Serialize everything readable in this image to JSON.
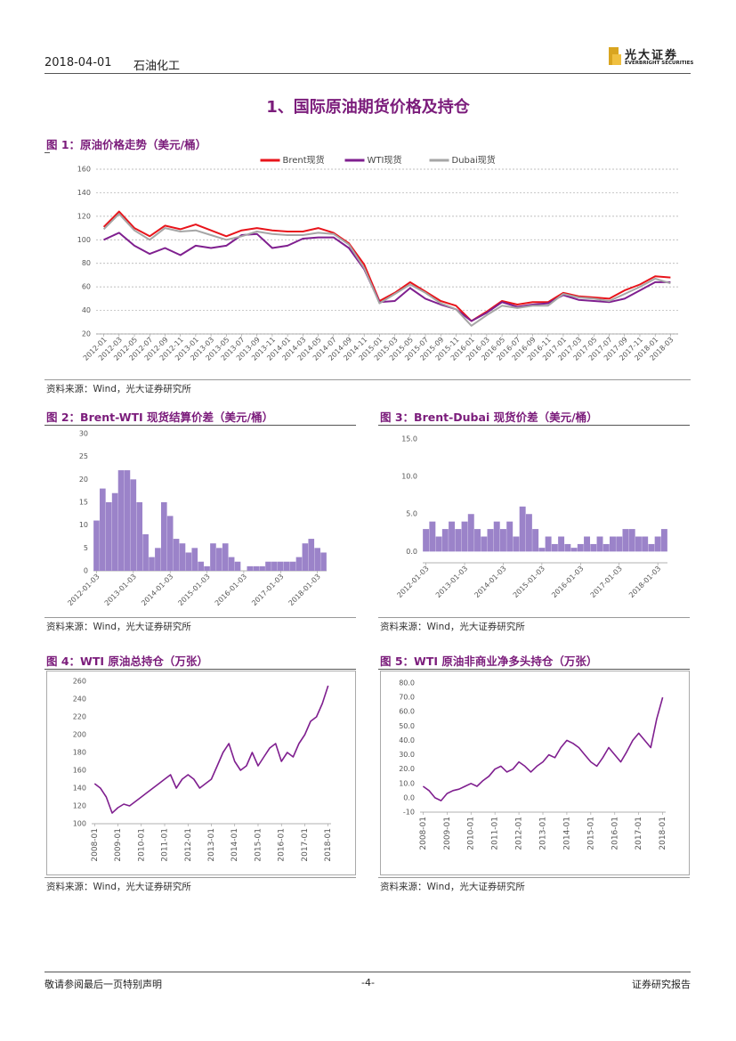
{
  "header": {
    "date": "2018-04-01",
    "category": "石油化工",
    "logo_cn": "光大证券",
    "logo_en": "EVERBRIGHT SECURITIES"
  },
  "section_title": "1、国际原油期货价格及持仓",
  "footer": {
    "left": "敬请参阅最后一页特别声明",
    "center": "-4-",
    "right": "证券研究报告"
  },
  "chart_data": [
    {
      "type": "line",
      "title": "图 1：原油价格走势（美元/桶）",
      "source": "资料来源：Wind，光大证券研究所",
      "categories": [
        "2012-01",
        "2012-03",
        "2012-05",
        "2012-07",
        "2012-09",
        "2012-11",
        "2013-01",
        "2013-03",
        "2013-05",
        "2013-07",
        "2013-09",
        "2013-11",
        "2014-01",
        "2014-03",
        "2014-05",
        "2014-07",
        "2014-09",
        "2014-11",
        "2015-01",
        "2015-03",
        "2015-05",
        "2015-07",
        "2015-09",
        "2015-11",
        "2016-01",
        "2016-03",
        "2016-05",
        "2016-07",
        "2016-09",
        "2016-11",
        "2017-01",
        "2017-03",
        "2017-05",
        "2017-07",
        "2017-09",
        "2017-11",
        "2018-01",
        "2018-03"
      ],
      "series": [
        {
          "name": "Brent现货",
          "color": "#e8141b",
          "values": [
            111,
            124,
            110,
            103,
            112,
            109,
            113,
            108,
            103,
            108,
            110,
            108,
            107,
            107,
            110,
            106,
            97,
            79,
            48,
            55,
            64,
            56,
            48,
            44,
            31,
            39,
            48,
            45,
            47,
            47,
            55,
            52,
            51,
            50,
            57,
            62,
            69,
            68
          ]
        },
        {
          "name": "WTI现货",
          "color": "#7f1f8f",
          "values": [
            100,
            106,
            95,
            88,
            93,
            87,
            95,
            93,
            95,
            104,
            105,
            93,
            95,
            101,
            102,
            102,
            93,
            75,
            47,
            48,
            59,
            50,
            45,
            41,
            31,
            38,
            47,
            43,
            45,
            46,
            53,
            49,
            48,
            47,
            50,
            57,
            64,
            64
          ]
        },
        {
          "name": "Dubai现货",
          "color": "#a6a6a6",
          "values": [
            109,
            122,
            108,
            100,
            110,
            107,
            108,
            104,
            100,
            103,
            107,
            105,
            104,
            104,
            106,
            105,
            96,
            76,
            46,
            54,
            62,
            55,
            46,
            41,
            27,
            36,
            44,
            42,
            44,
            44,
            54,
            51,
            50,
            48,
            54,
            60,
            67,
            63
          ]
        }
      ],
      "ylim": [
        20,
        160
      ],
      "yticks": [
        20,
        40,
        60,
        80,
        100,
        120,
        140,
        160
      ],
      "grid": true,
      "legend": "top"
    },
    {
      "type": "bar",
      "title": "图 2：Brent-WTI 现货结算价差（美元/桶）",
      "source": "资料来源：Wind，光大证券研究所",
      "categories": [
        "2012-01-03",
        null,
        null,
        null,
        null,
        null,
        "2013-01-03",
        null,
        null,
        null,
        null,
        null,
        "2014-01-03",
        null,
        null,
        null,
        null,
        null,
        "2015-01-03",
        null,
        null,
        null,
        null,
        null,
        "2016-01-03",
        null,
        null,
        null,
        null,
        null,
        "2017-01-03",
        null,
        null,
        null,
        null,
        null,
        "2018-01-03",
        null
      ],
      "values": [
        11,
        18,
        15,
        17,
        22,
        22,
        20,
        15,
        8,
        3,
        5,
        15,
        12,
        7,
        6,
        4,
        5,
        2,
        1,
        6,
        5,
        6,
        3,
        2,
        0,
        1,
        1,
        1,
        2,
        2,
        2,
        2,
        2,
        3,
        6,
        7,
        5,
        4
      ],
      "color": "#9b83c9",
      "ylim": [
        0,
        30
      ],
      "yticks": [
        0,
        5,
        10,
        15,
        20,
        25,
        30
      ],
      "grid": false
    },
    {
      "type": "bar",
      "title": "图 3：Brent-Dubai 现货价差（美元/桶）",
      "source": "资料来源：Wind，光大证券研究所",
      "categories": [
        "2012-01-03",
        null,
        null,
        null,
        null,
        null,
        "2013-01-03",
        null,
        null,
        null,
        null,
        null,
        "2014-01-03",
        null,
        null,
        null,
        null,
        null,
        "2015-01-03",
        null,
        null,
        null,
        null,
        null,
        "2016-01-03",
        null,
        null,
        null,
        null,
        null,
        "2017-01-03",
        null,
        null,
        null,
        null,
        null,
        "2018-01-03",
        null
      ],
      "values": [
        3,
        4,
        2,
        3,
        4,
        3,
        4,
        5,
        3,
        2,
        3,
        4,
        3,
        4,
        2,
        6,
        5,
        3,
        0.5,
        2,
        1,
        2,
        1,
        0.5,
        1,
        2,
        1,
        2,
        1,
        2,
        2,
        3,
        3,
        2,
        2,
        1,
        2,
        3
      ],
      "color": "#9b83c9",
      "ylim": [
        -1.5,
        15
      ],
      "yticks": [
        {
          "value": 0,
          "label": "0.0"
        },
        {
          "value": 5,
          "label": "5.0"
        },
        {
          "value": 10,
          "label": "10.0"
        },
        {
          "value": 15,
          "label": "15.0"
        }
      ],
      "grid": false
    },
    {
      "type": "line",
      "title": "图 4：WTI 原油总持仓（万张）",
      "source": "资料来源：Wind，光大证券研究所",
      "categories": [
        "2008-01",
        null,
        null,
        null,
        "2009-01",
        null,
        null,
        null,
        "2010-01",
        null,
        null,
        null,
        "2011-01",
        null,
        null,
        null,
        "2012-01",
        null,
        null,
        null,
        "2013-01",
        null,
        null,
        null,
        "2014-01",
        null,
        null,
        null,
        "2015-01",
        null,
        null,
        null,
        "2016-01",
        null,
        null,
        null,
        "2017-01",
        null,
        null,
        null,
        "2018-01"
      ],
      "series": [
        {
          "color": "#7f1f8f",
          "values": [
            145,
            140,
            130,
            112,
            118,
            122,
            120,
            125,
            130,
            135,
            140,
            145,
            150,
            155,
            140,
            150,
            155,
            150,
            140,
            145,
            150,
            165,
            180,
            190,
            170,
            160,
            165,
            180,
            165,
            175,
            185,
            190,
            170,
            180,
            175,
            190,
            200,
            215,
            220,
            235,
            255
          ]
        }
      ],
      "ylim": [
        100,
        260
      ],
      "yticks": [
        100,
        120,
        140,
        160,
        180,
        200,
        220,
        240,
        260
      ],
      "grid": false
    },
    {
      "type": "line",
      "title": "图 5：WTI 原油非商业净多头持仓（万张）",
      "source": "资料来源：Wind，光大证券研究所",
      "categories": [
        "2008-01",
        null,
        null,
        null,
        "2009-01",
        null,
        null,
        null,
        "2010-01",
        null,
        null,
        null,
        "2011-01",
        null,
        null,
        null,
        "2012-01",
        null,
        null,
        null,
        "2013-01",
        null,
        null,
        null,
        "2014-01",
        null,
        null,
        null,
        "2015-01",
        null,
        null,
        null,
        "2016-01",
        null,
        null,
        null,
        "2017-01",
        null,
        null,
        null,
        "2018-01"
      ],
      "series": [
        {
          "color": "#7f1f8f",
          "values": [
            8,
            5,
            0,
            -2,
            3,
            5,
            6,
            8,
            10,
            8,
            12,
            15,
            20,
            22,
            18,
            20,
            25,
            22,
            18,
            22,
            25,
            30,
            28,
            35,
            40,
            38,
            35,
            30,
            25,
            22,
            28,
            35,
            30,
            25,
            32,
            40,
            45,
            40,
            35,
            55,
            70
          ]
        }
      ],
      "ylim": [
        -10,
        80
      ],
      "yticks": [
        {
          "value": -10,
          "label": "-10"
        },
        {
          "value": 0,
          "label": "0.0"
        },
        {
          "value": 10,
          "label": "10.0"
        },
        {
          "value": 20,
          "label": "20.0"
        },
        {
          "value": 30,
          "label": "30.0"
        },
        {
          "value": 40,
          "label": "40.0"
        },
        {
          "value": 50,
          "label": "50.0"
        },
        {
          "value": 60,
          "label": "60.0"
        },
        {
          "value": 70,
          "label": "70.0"
        },
        {
          "value": 80,
          "label": "80.0"
        }
      ],
      "grid": false
    }
  ]
}
